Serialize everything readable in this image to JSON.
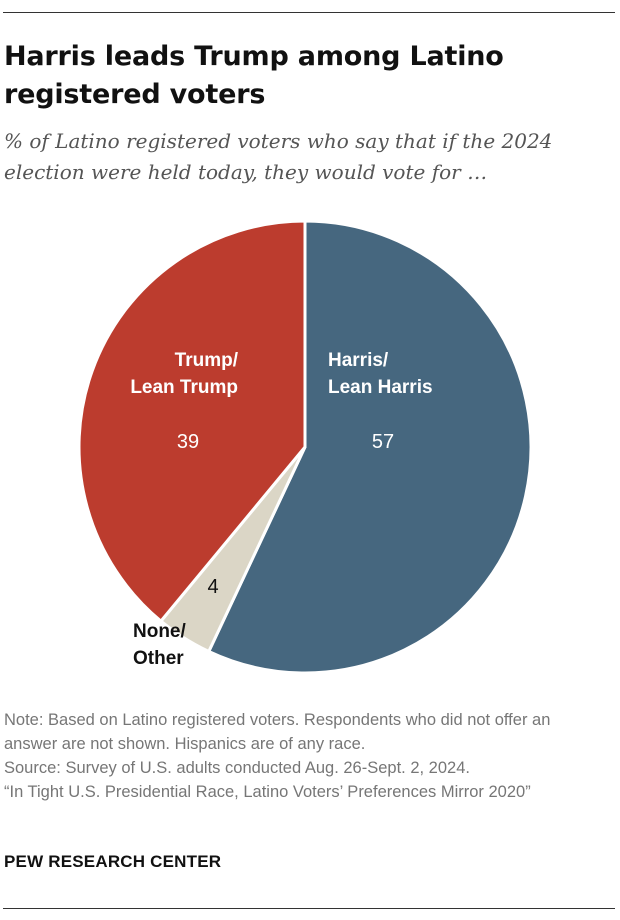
{
  "title": "Harris leads Trump among Latino registered voters",
  "subtitle": "% of Latino registered voters who say that if the 2024 election were held today, they would vote for …",
  "chart_data": {
    "type": "pie",
    "slices": [
      {
        "label_lines": [
          "Harris/",
          "Lean Harris"
        ],
        "value": 57,
        "value_label": "57",
        "color": "#46677f"
      },
      {
        "label_lines": [
          "None/",
          "Other"
        ],
        "value": 4,
        "value_label": "4",
        "color": "#dbd6c6"
      },
      {
        "label_lines": [
          "Trump/",
          "Lean Trump"
        ],
        "value": 39,
        "value_label": "39",
        "color": "#bc3c2e"
      }
    ],
    "start_angle_deg": 0,
    "direction": "clockwise"
  },
  "notes": [
    "Note: Based on Latino registered voters. Respondents who did not offer an answer are not shown. Hispanics are of any race.",
    "Source: Survey of U.S. adults conducted Aug. 26-Sept. 2, 2024.",
    "“In Tight U.S. Presidential Race, Latino Voters’ Preferences Mirror 2020”"
  ],
  "source_name": "PEW RESEARCH CENTER"
}
